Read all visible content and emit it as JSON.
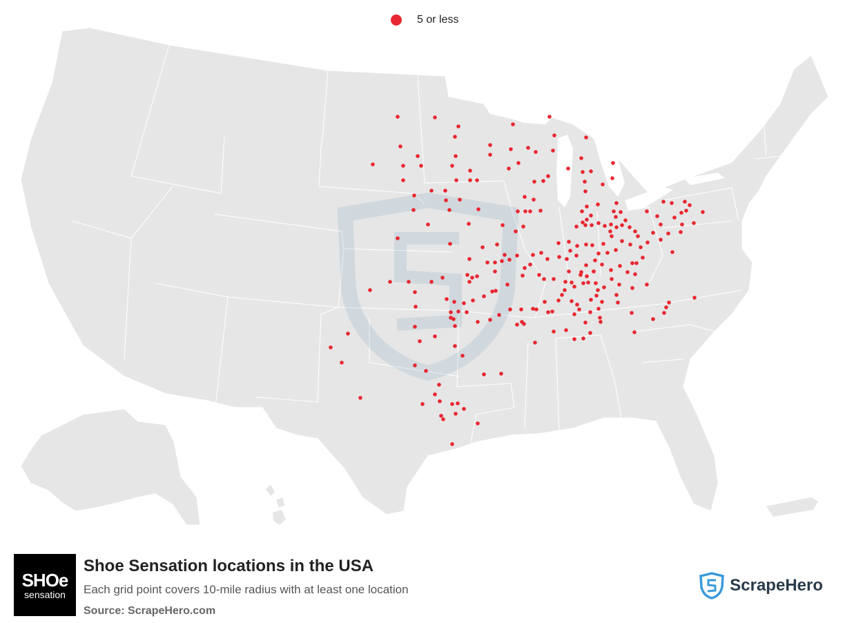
{
  "legend": {
    "label": "5 or less",
    "color": "#e8262f"
  },
  "map": {
    "land_color": "#e6e6e6",
    "border_color": "#ffffff",
    "point_color": "#e8262f",
    "watermark_icon": "scrapehero-shield-icon"
  },
  "footer": {
    "logo_top": "SHOe",
    "logo_bottom": "sensation",
    "title": "Shoe Sensation locations in the USA",
    "subtitle": "Each grid point covers 10-mile radius with at least one location",
    "source": "Source: ScrapeHero.com",
    "brand_name": "ScrapeHero",
    "brand_color": "#3a9ad9"
  }
}
